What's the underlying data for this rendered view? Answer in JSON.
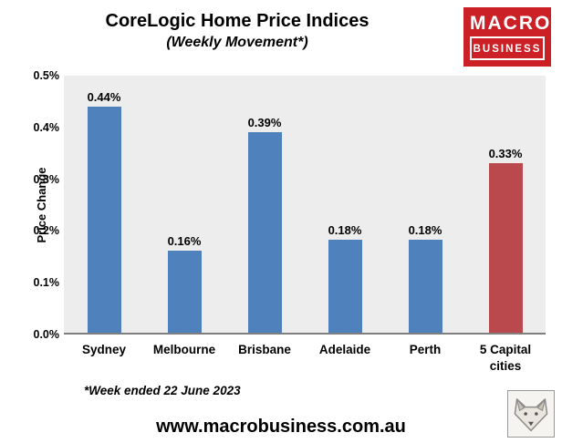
{
  "header": {
    "title": "CoreLogic Home Price Indices",
    "subtitle": "(Weekly Movement*)"
  },
  "logo": {
    "line1": "MACRO",
    "line2": "BUSINESS",
    "bg_color": "#cb2026"
  },
  "chart_data": {
    "type": "bar",
    "categories": [
      "Sydney",
      "Melbourne",
      "Brisbane",
      "Adelaide",
      "Perth",
      "5 Capital cities"
    ],
    "values": [
      0.44,
      0.16,
      0.39,
      0.18,
      0.18,
      0.33
    ],
    "labels": [
      "0.44%",
      "0.16%",
      "0.39%",
      "0.18%",
      "0.18%",
      "0.33%"
    ],
    "bar_colors": [
      "#4f81bd",
      "#4f81bd",
      "#4f81bd",
      "#4f81bd",
      "#4f81bd",
      "#b9494c"
    ],
    "title": "CoreLogic Home Price Indices",
    "xlabel": "",
    "ylabel": "Price Change",
    "ylim": [
      0,
      0.5
    ],
    "yticks": [
      "0.0%",
      "0.1%",
      "0.2%",
      "0.3%",
      "0.4%",
      "0.5%"
    ],
    "grid": false,
    "legend": "none",
    "plot_bg": "#ededed"
  },
  "footnote": "*Week ended 22 June 2023",
  "footer": {
    "url": "www.macrobusiness.com.au",
    "logo_icon": "wolf-icon"
  }
}
